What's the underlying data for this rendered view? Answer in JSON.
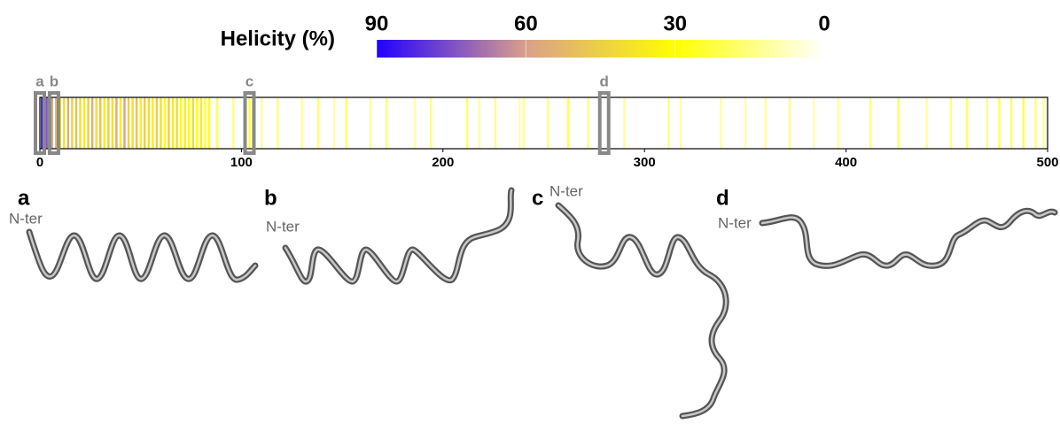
{
  "chart_data": {
    "type": "heatstrip",
    "colorbar": {
      "label": "Helicity (%)",
      "lim": [
        90,
        0
      ],
      "ticks": [
        90,
        60,
        30,
        0
      ],
      "colormap": [
        {
          "value": 90,
          "color": "#2200ff"
        },
        {
          "value": 60,
          "color": "#d9a08a"
        },
        {
          "value": 30,
          "color": "#ffff00"
        },
        {
          "value": 0,
          "color": "#ffffff"
        }
      ]
    },
    "xlim": [
      0,
      500
    ],
    "xticks": [
      0,
      100,
      200,
      300,
      400,
      500
    ],
    "x": [
      1,
      2,
      3,
      4,
      5,
      6,
      8,
      10,
      12,
      14,
      16,
      18,
      20,
      22,
      24,
      26,
      28,
      30,
      32,
      34,
      36,
      38,
      40,
      42,
      44,
      46,
      48,
      50,
      52,
      54,
      56,
      58,
      60,
      62,
      64,
      66,
      68,
      70,
      72,
      74,
      76,
      78,
      80,
      82,
      84,
      88,
      96,
      104,
      110,
      118,
      130,
      138,
      146,
      152,
      164,
      172,
      186,
      194,
      212,
      218,
      226,
      238,
      240,
      252,
      262,
      272,
      290,
      312,
      318,
      338,
      350,
      360,
      372,
      384,
      396,
      412,
      426,
      440,
      452,
      460,
      470,
      476,
      482,
      488,
      494,
      498
    ],
    "values": [
      85,
      80,
      75,
      70,
      55,
      60,
      50,
      45,
      40,
      55,
      45,
      50,
      40,
      35,
      45,
      55,
      40,
      50,
      35,
      45,
      40,
      55,
      35,
      60,
      45,
      40,
      50,
      35,
      45,
      40,
      35,
      45,
      40,
      30,
      45,
      35,
      40,
      30,
      35,
      30,
      40,
      30,
      35,
      25,
      30,
      20,
      15,
      25,
      12,
      15,
      12,
      15,
      10,
      18,
      12,
      15,
      10,
      14,
      18,
      12,
      15,
      10,
      12,
      15,
      18,
      14,
      12,
      15,
      10,
      12,
      10,
      12,
      15,
      10,
      12,
      14,
      18,
      12,
      15,
      18,
      15,
      20,
      18,
      22,
      15,
      12
    ],
    "highlights": [
      {
        "label": "a",
        "x": 0
      },
      {
        "label": "b",
        "x": 7
      },
      {
        "label": "c",
        "x": 104
      },
      {
        "label": "d",
        "x": 280
      }
    ],
    "panels": [
      {
        "label": "a",
        "terminus": "N-ter"
      },
      {
        "label": "b",
        "terminus": "N-ter"
      },
      {
        "label": "c",
        "terminus": "N-ter"
      },
      {
        "label": "d",
        "terminus": "N-ter"
      }
    ]
  }
}
